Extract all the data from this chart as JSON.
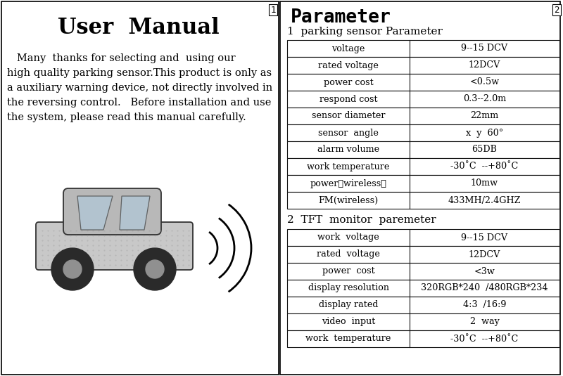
{
  "bg_color": "#ffffff",
  "left_panel": {
    "title": "User  Manual",
    "body_lines": [
      "   Many  thanks for selecting and  using our",
      "high quality parking sensor.This product is only as",
      "a auxiliary warning device, not directly involved in",
      "the reversing control.   Before installation and use",
      "the system, please read this manual carefully."
    ]
  },
  "right_panel": {
    "title": "Parameter",
    "section1_title": "1  parking sensor Parameter",
    "table1": [
      [
        "voltage",
        "9--15 DCV"
      ],
      [
        "rated voltage",
        "12DCV"
      ],
      [
        "power cost",
        "<0.5w"
      ],
      [
        "respond cost",
        "0.3--2.0m"
      ],
      [
        "sensor diameter",
        "22mm"
      ],
      [
        "sensor  angle",
        "x  y  60°"
      ],
      [
        "alarm volume",
        "65DB"
      ],
      [
        "work temperature",
        "-30˚C  --+80˚C"
      ],
      [
        "power（wireless）",
        "10mw"
      ],
      [
        "FM(wireless)",
        "433MH/2.4GHZ"
      ]
    ],
    "section2_title": "2  TFT  monitor  paremeter",
    "table2": [
      [
        "work  voltage",
        "9--15 DCV"
      ],
      [
        "rated  voltage",
        "12DCV"
      ],
      [
        "power  cost",
        "<3w"
      ],
      [
        "display resolution",
        "320RGB*240  /480RGB*234"
      ],
      [
        "display rated",
        "4:3  /16:9"
      ],
      [
        "video  input",
        "2  way"
      ],
      [
        "work  temperature",
        "-30˚C  --+80˚C"
      ]
    ]
  },
  "page_nums": [
    "1",
    "2"
  ]
}
